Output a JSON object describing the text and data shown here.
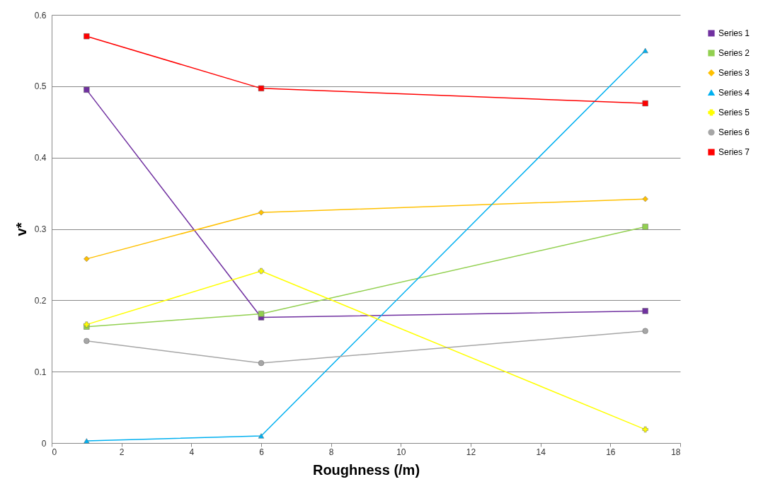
{
  "chart_data": {
    "type": "line",
    "xlabel": "Roughness (/m)",
    "ylabel": "v*",
    "x": [
      1,
      6,
      17
    ],
    "xlim": [
      0,
      18
    ],
    "xticks": [
      0,
      2,
      4,
      6,
      8,
      10,
      12,
      14,
      16,
      18
    ],
    "ylim": [
      0,
      0.6
    ],
    "yticks": [
      0,
      0.1,
      0.2,
      0.3,
      0.4,
      0.5,
      0.6
    ],
    "grid": "y",
    "legend": "right",
    "series": [
      {
        "name": "Series 1",
        "color": "#7030a0",
        "marker": "square",
        "values": [
          0.495,
          0.176,
          0.185
        ]
      },
      {
        "name": "Series 2",
        "color": "#92d050",
        "marker": "square",
        "values": [
          0.163,
          0.181,
          0.303
        ]
      },
      {
        "name": "Series 3",
        "color": "#ffc000",
        "marker": "diamond",
        "values": [
          0.258,
          0.323,
          0.342
        ]
      },
      {
        "name": "Series 4",
        "color": "#00b0f0",
        "marker": "triangle",
        "values": [
          0.003,
          0.01,
          0.55
        ]
      },
      {
        "name": "Series 5",
        "color": "#ffff00",
        "marker": "cross",
        "values": [
          0.166,
          0.241,
          0.019
        ]
      },
      {
        "name": "Series 6",
        "color": "#a6a6a6",
        "marker": "circle",
        "values": [
          0.143,
          0.112,
          0.157
        ]
      },
      {
        "name": "Series 7",
        "color": "#ff0000",
        "marker": "square",
        "values": [
          0.57,
          0.497,
          0.476
        ]
      }
    ]
  }
}
